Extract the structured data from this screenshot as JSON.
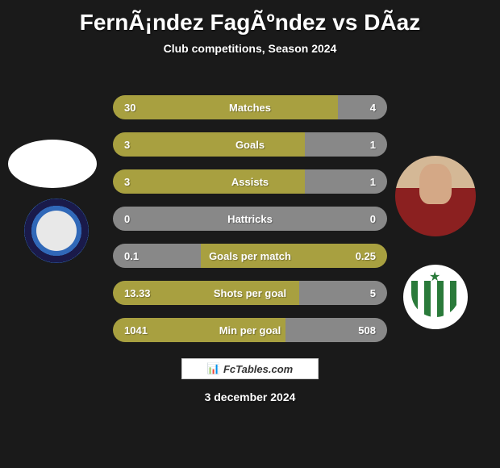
{
  "title": "FernÃ¡ndez FagÃºndez vs DÃ­az",
  "subtitle": "Club competitions, Season 2024",
  "footer_logo": "FcTables.com",
  "footer_date": "3 december 2024",
  "colors": {
    "background": "#1a1a1a",
    "bar_olive": "#a8a040",
    "bar_gray": "#888888",
    "text": "#ffffff"
  },
  "stats": [
    {
      "label": "Matches",
      "left_value": "30",
      "right_value": "4",
      "left_color": "#a8a040",
      "right_color": "#888888",
      "left_pct": 82,
      "right_pct": 18
    },
    {
      "label": "Goals",
      "left_value": "3",
      "right_value": "1",
      "left_color": "#a8a040",
      "right_color": "#888888",
      "left_pct": 70,
      "right_pct": 30
    },
    {
      "label": "Assists",
      "left_value": "3",
      "right_value": "1",
      "left_color": "#a8a040",
      "right_color": "#888888",
      "left_pct": 70,
      "right_pct": 30
    },
    {
      "label": "Hattricks",
      "left_value": "0",
      "right_value": "0",
      "left_color": "#888888",
      "right_color": "#888888",
      "left_pct": 50,
      "right_pct": 50
    },
    {
      "label": "Goals per match",
      "left_value": "0.1",
      "right_value": "0.25",
      "left_color": "#888888",
      "right_color": "#a8a040",
      "left_pct": 32,
      "right_pct": 68
    },
    {
      "label": "Shots per goal",
      "left_value": "13.33",
      "right_value": "5",
      "left_color": "#a8a040",
      "right_color": "#888888",
      "left_pct": 68,
      "right_pct": 32
    },
    {
      "label": "Min per goal",
      "left_value": "1041",
      "right_value": "508",
      "left_color": "#a8a040",
      "right_color": "#888888",
      "left_pct": 63,
      "right_pct": 37
    }
  ]
}
